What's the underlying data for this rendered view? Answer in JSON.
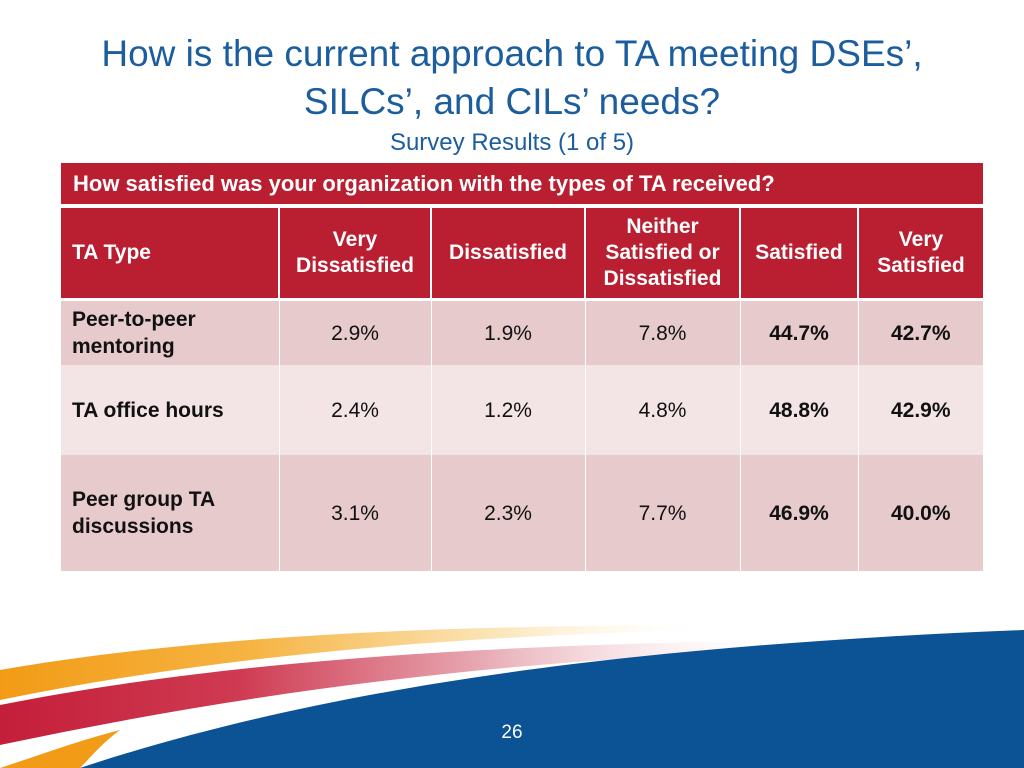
{
  "slide": {
    "title": "How is the current approach to TA meeting DSEs’, SILCs’, and CILs’ needs?",
    "subtitle": "Survey Results (1 of 5)",
    "question": "How satisfied was your organization with the types of TA received?",
    "page_number": "26"
  },
  "table": {
    "headers": [
      "TA Type",
      "Very Dissatisfied",
      "Dissatisfied",
      "Neither Satisfied or Dissatisfied",
      "Satisfied",
      "Very Satisfied"
    ],
    "rows": [
      {
        "type": "Peer-to-peer mentoring",
        "very_dissatisfied": "2.9%",
        "dissatisfied": "1.9%",
        "neither": "7.8%",
        "satisfied": "44.7%",
        "very_satisfied": "42.7%"
      },
      {
        "type": "TA office hours",
        "very_dissatisfied": "2.4%",
        "dissatisfied": "1.2%",
        "neither": "4.8%",
        "satisfied": "48.8%",
        "very_satisfied": "42.9%"
      },
      {
        "type": "Peer group TA discussions",
        "very_dissatisfied": "3.1%",
        "dissatisfied": "2.3%",
        "neither": "7.7%",
        "satisfied": "46.9%",
        "very_satisfied": "40.0%"
      }
    ]
  },
  "colors": {
    "title_blue": "#1b5d9d",
    "header_red": "#b91e31",
    "row_dark": "#e7cacc",
    "row_light": "#f3e4e5",
    "footer_blue": "#0b5394",
    "footer_orange": "#f4a21e"
  }
}
